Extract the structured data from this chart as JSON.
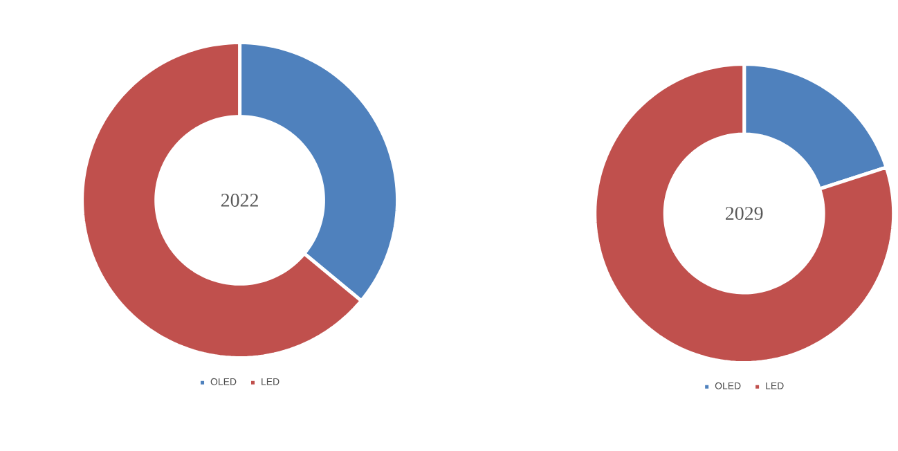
{
  "chart_data": [
    {
      "type": "donut",
      "title": "2022",
      "categories": [
        "OLED",
        "LED"
      ],
      "values": [
        36,
        64
      ],
      "colors": [
        "#4f81bd",
        "#c0504d"
      ],
      "legend": "bottom"
    },
    {
      "type": "donut",
      "title": "2029",
      "categories": [
        "OLED",
        "LED"
      ],
      "values": [
        20,
        80
      ],
      "colors": [
        "#4f81bd",
        "#c0504d"
      ],
      "legend": "bottom"
    }
  ]
}
